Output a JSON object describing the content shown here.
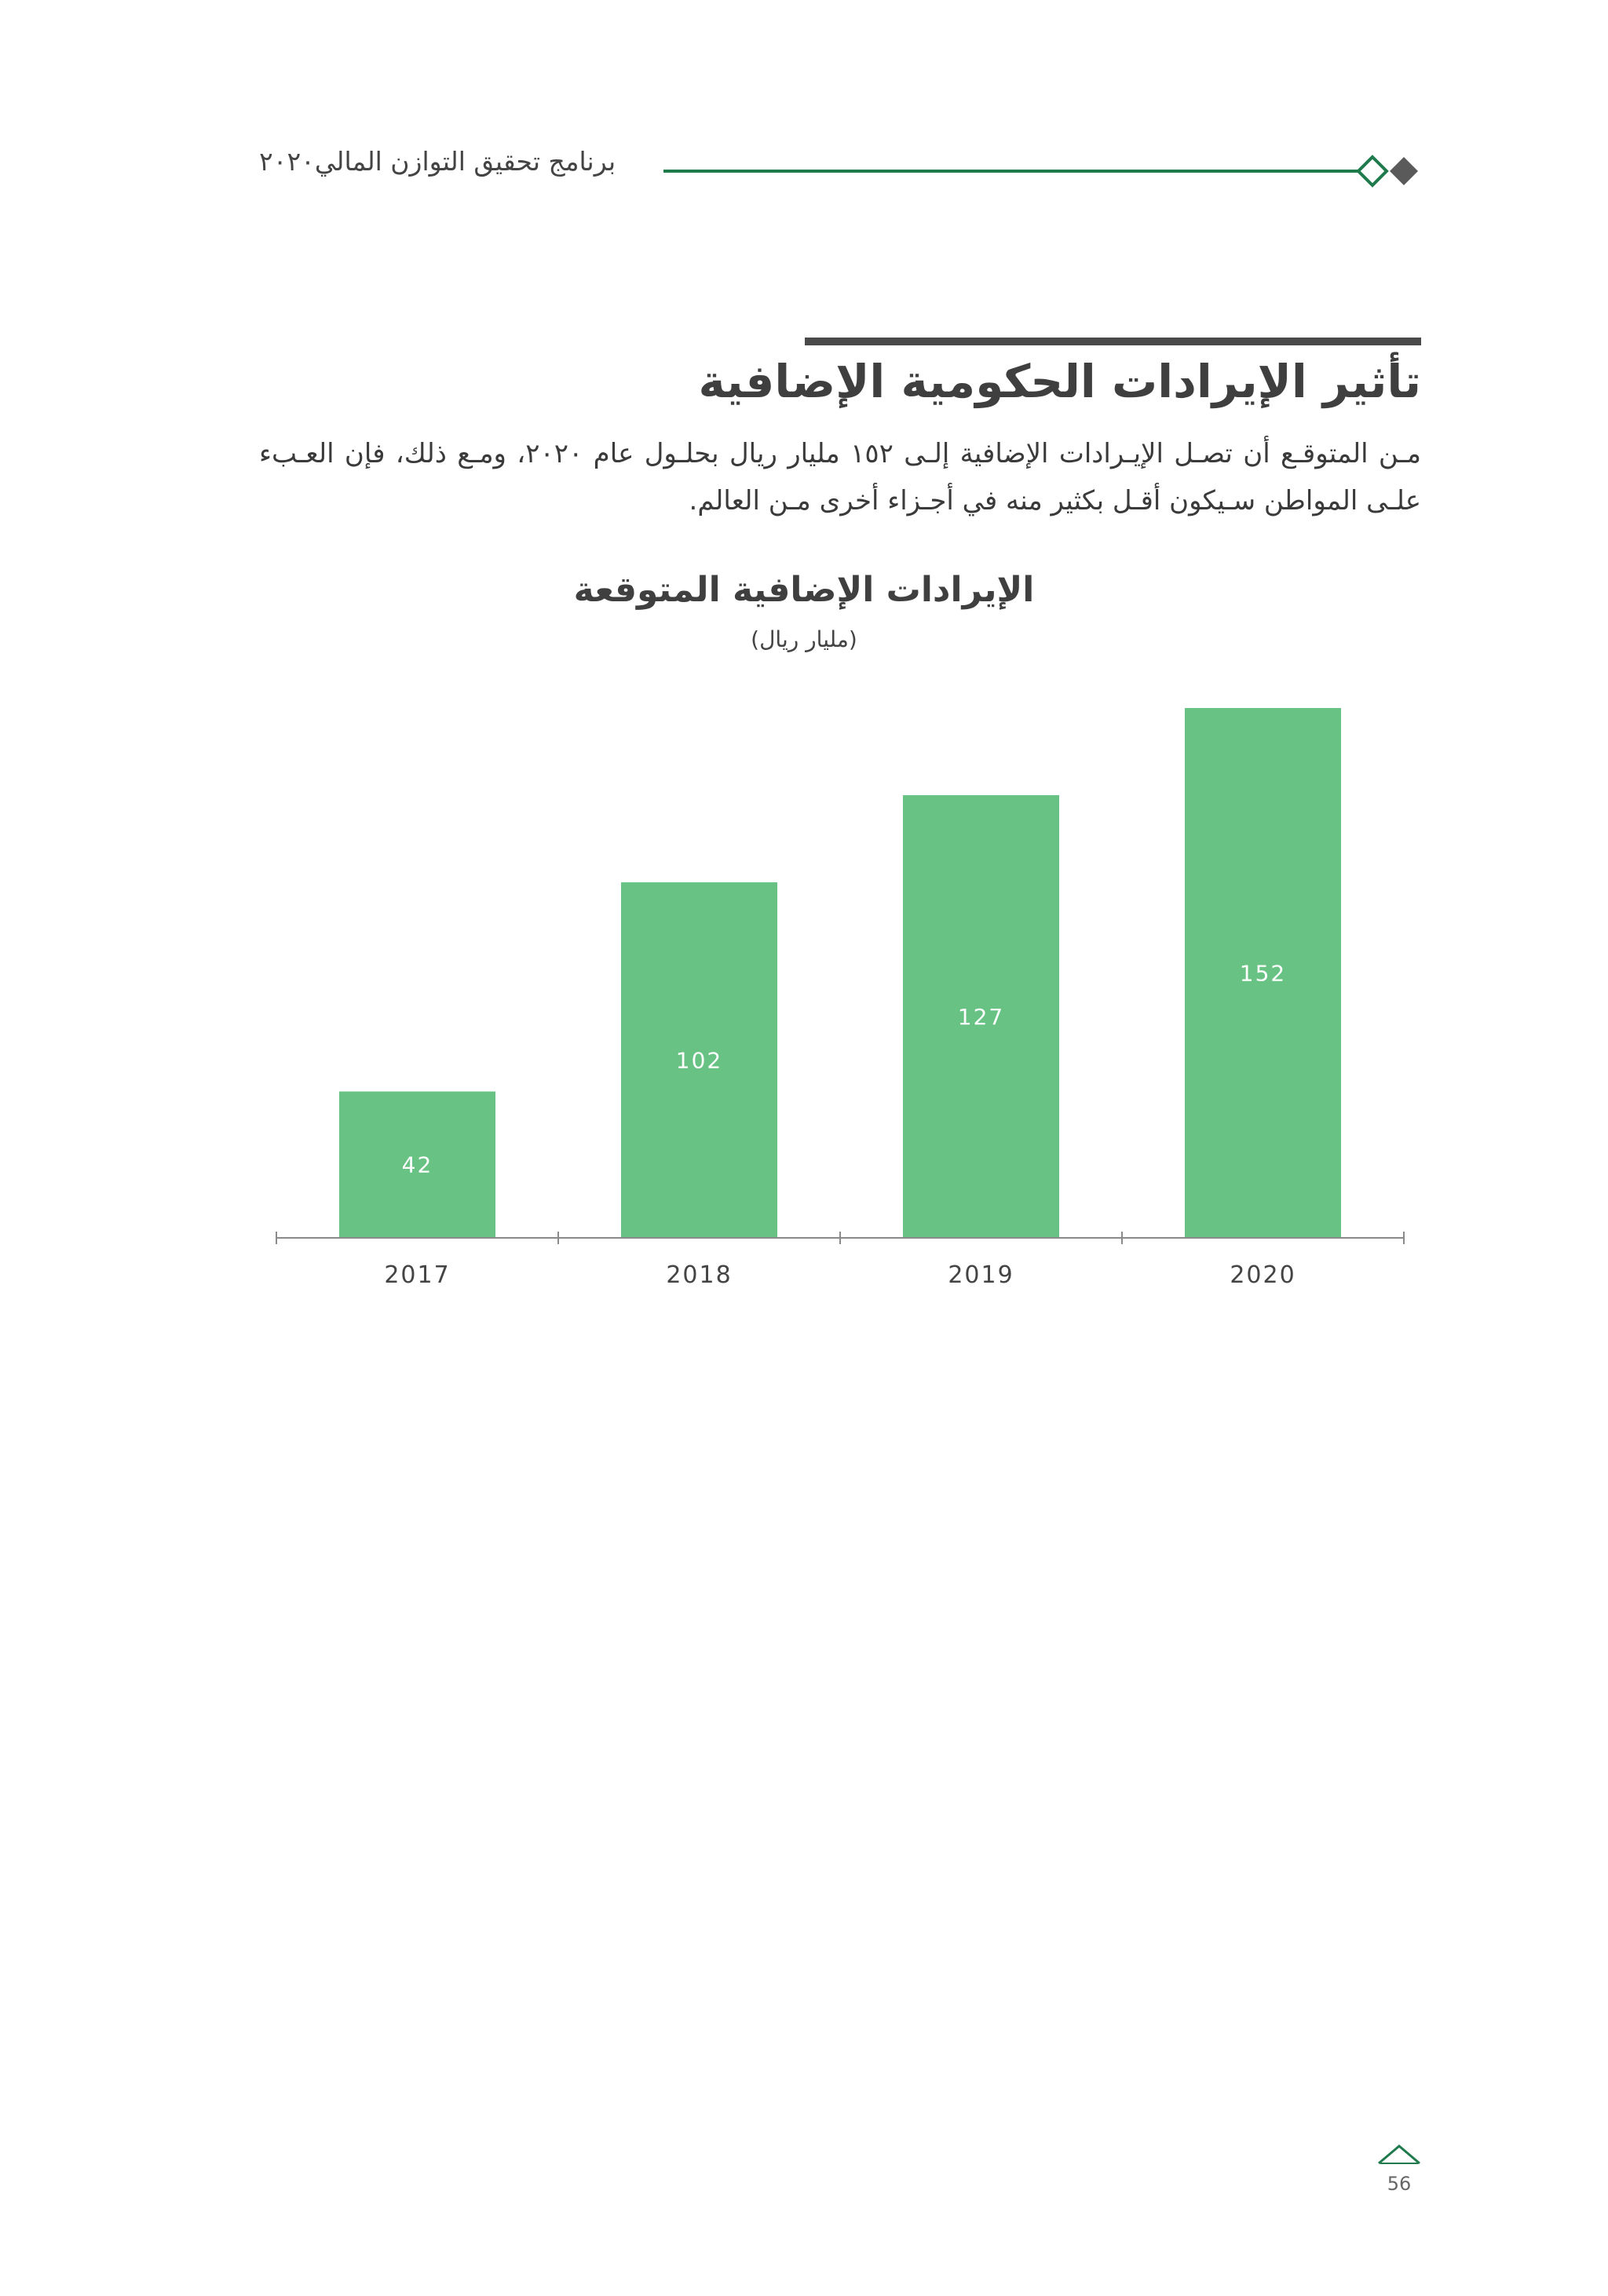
{
  "header": {
    "title": "برنامج تحقيق التوازن المالي٢٠٢٠"
  },
  "section": {
    "title": "تأثير الإيرادات الحكومية الإضافية",
    "paragraph": "مـن المتوقـع أن تصـل الإيـرادات الإضافية إلـى ١٥٢ مليار ريال بحلـول عام ٢٠٢٠، ومـع ذلك، فإن العـبء علـى المواطن سـيكون أقـل بكثير منه في أجـزاء أخرى مـن العالم."
  },
  "chart_data": {
    "type": "bar",
    "title": "الإيرادات الإضافية المتوقعة",
    "subtitle": "(مليار ريال)",
    "categories": [
      "2017",
      "2018",
      "2019",
      "2020"
    ],
    "values": [
      42,
      102,
      127,
      152
    ],
    "ylim": [
      0,
      152
    ],
    "grid": false,
    "bar_color": "#68c284"
  },
  "footer": {
    "page_number": "56"
  }
}
